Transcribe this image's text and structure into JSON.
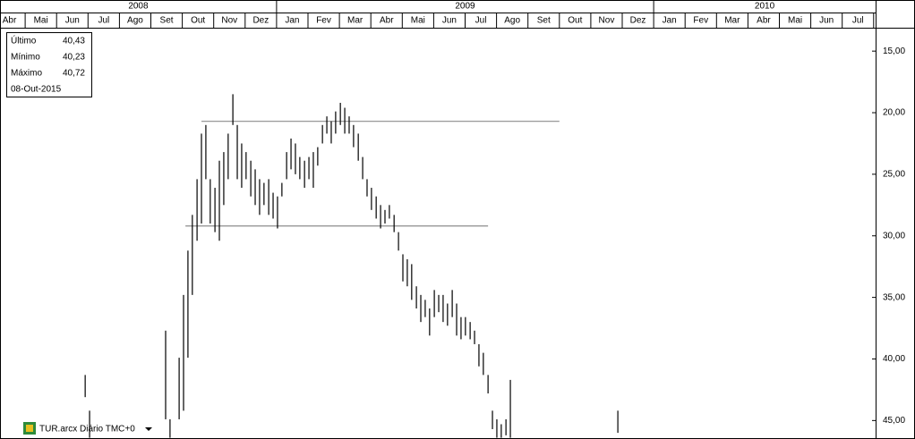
{
  "chart_data": {
    "type": "ohlc",
    "years": [
      {
        "value": 0,
        "label": "2008"
      },
      {
        "value": 9,
        "label": "2009"
      },
      {
        "value": 21,
        "label": "2010"
      }
    ],
    "months": [
      "Abr",
      "Mai",
      "Jun",
      "Jul",
      "Ago",
      "Set",
      "Out",
      "Nov",
      "Dez",
      "Jan",
      "Fev",
      "Mar",
      "Abr",
      "Mai",
      "Jun",
      "Jul",
      "Ago",
      "Set",
      "Out",
      "Nov",
      "Dez",
      "Jan",
      "Fev",
      "Mar",
      "Abr",
      "Mai",
      "Jun",
      "Jul"
    ],
    "xlim": [
      0,
      28
    ],
    "ylim": [
      13.1,
      46.5
    ],
    "yticks": [
      {
        "value": 15,
        "label": "15,00"
      },
      {
        "value": 20,
        "label": "20,00"
      },
      {
        "value": 25,
        "label": "25,00"
      },
      {
        "value": 30,
        "label": "30,00"
      },
      {
        "value": 35,
        "label": "35,00"
      },
      {
        "value": 40,
        "label": "40,00"
      },
      {
        "value": 45,
        "label": "45,00"
      }
    ],
    "info": [
      {
        "label": "Último",
        "value": "40,43"
      },
      {
        "label": "Mínimo",
        "value": "40,23"
      },
      {
        "label": "Máximo",
        "value": "40,72"
      }
    ],
    "date": "08-Out-2015",
    "footer": "TUR.arcx Diário TMC+0",
    "color": "#000000",
    "line_color": "#8c8c8c",
    "lines": [
      {
        "value": 20.7,
        "start": 6.61,
        "end": 18.0
      },
      {
        "value": 29.2,
        "start": 6.1,
        "end": 15.73
      }
    ],
    "x": [
      2.91,
      3.05,
      5.47,
      5.61,
      5.9,
      6.04,
      6.18,
      6.32,
      6.47,
      6.61,
      6.75,
      6.89,
      7.04,
      7.18,
      7.32,
      7.46,
      7.61,
      7.75,
      7.89,
      8.03,
      8.18,
      8.32,
      8.46,
      8.6,
      8.75,
      8.89,
      9.03,
      9.17,
      9.32,
      9.46,
      9.6,
      9.74,
      9.89,
      10.03,
      10.17,
      10.31,
      10.46,
      10.6,
      10.74,
      10.88,
      11.03,
      11.17,
      11.31,
      11.45,
      11.6,
      11.74,
      11.88,
      12.02,
      12.17,
      12.31,
      12.45,
      12.59,
      12.74,
      12.88,
      13.02,
      13.16,
      13.3,
      13.45,
      13.59,
      13.73,
      13.87,
      14.02,
      14.16,
      14.3,
      14.44,
      14.59,
      14.73,
      14.87,
      15.01,
      15.16,
      15.3,
      15.44,
      15.58,
      15.73,
      15.87,
      16.01,
      16.15,
      16.3,
      16.44,
      19.86
    ],
    "low": [
      41.3,
      44.2,
      37.7,
      44.9,
      39.9,
      34.8,
      31.2,
      28.3,
      25.4,
      21.7,
      21.0,
      25.4,
      26.1,
      23.9,
      23.2,
      21.7,
      18.5,
      21.0,
      22.5,
      23.2,
      23.9,
      24.6,
      25.4,
      25.7,
      25.4,
      26.5,
      26.8,
      25.7,
      23.2,
      22.1,
      22.5,
      23.6,
      23.9,
      23.6,
      23.2,
      22.8,
      21.0,
      20.3,
      20.7,
      19.9,
      19.2,
      19.6,
      20.3,
      21.0,
      21.7,
      23.6,
      25.4,
      26.1,
      26.8,
      27.5,
      27.9,
      27.5,
      28.3,
      29.7,
      31.5,
      31.9,
      32.3,
      34.1,
      34.8,
      35.2,
      35.9,
      34.4,
      34.8,
      34.8,
      35.5,
      34.4,
      35.5,
      36.6,
      36.6,
      37.0,
      37.7,
      38.8,
      39.5,
      41.3,
      44.2,
      44.9,
      45.3,
      44.9,
      41.7,
      44.2
    ],
    "high": [
      43.1,
      46.4,
      44.9,
      46.4,
      44.9,
      44.2,
      39.9,
      34.8,
      30.4,
      29.0,
      25.4,
      29.0,
      29.7,
      30.4,
      27.5,
      25.4,
      21.0,
      25.4,
      26.1,
      25.4,
      26.8,
      27.5,
      28.3,
      27.5,
      28.3,
      28.6,
      29.4,
      26.8,
      25.4,
      24.6,
      25.0,
      25.4,
      26.1,
      25.4,
      26.1,
      24.3,
      22.5,
      21.7,
      22.5,
      21.7,
      21.0,
      21.7,
      21.7,
      22.8,
      23.9,
      25.4,
      26.8,
      27.9,
      28.6,
      29.4,
      29.0,
      28.6,
      29.7,
      31.2,
      33.7,
      34.1,
      35.2,
      35.9,
      37.0,
      36.6,
      38.1,
      36.6,
      36.2,
      37.0,
      37.3,
      36.6,
      38.1,
      38.4,
      38.1,
      38.4,
      38.8,
      40.6,
      41.3,
      42.8,
      45.7,
      46.4,
      46.4,
      46.2,
      46.4,
      46.0
    ]
  }
}
